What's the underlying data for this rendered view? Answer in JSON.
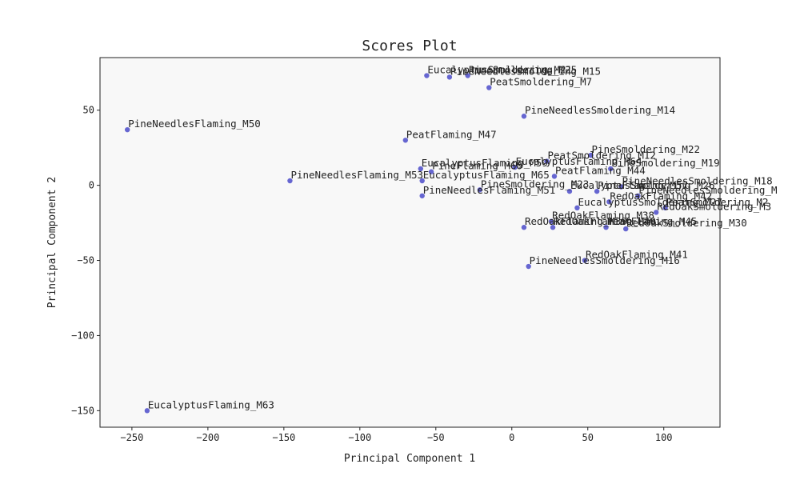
{
  "chart_data": {
    "type": "scatter",
    "title": "Scores Plot",
    "xlabel": "Principal Component 1",
    "ylabel": "Principal Component 2",
    "xlim": [
      -271,
      137
    ],
    "ylim": [
      -161,
      85
    ],
    "xticks": [
      -250,
      -200,
      -150,
      -100,
      -50,
      0,
      50,
      100
    ],
    "yticks": [
      50,
      0,
      -50,
      -100,
      -150
    ],
    "xtick_labels": [
      "−250",
      "−200",
      "−150",
      "−100",
      "−50",
      "0",
      "50",
      "100"
    ],
    "ytick_labels": [
      "50",
      "0",
      "−50",
      "−100",
      "−150"
    ],
    "grid": false,
    "point_color": "#5555cc",
    "points": [
      {
        "label": "EucalyptusSmoldering_M21",
        "x": -56,
        "y": 73
      },
      {
        "label": "PineNeedlesSmoldering_M15",
        "x": -41,
        "y": 72
      },
      {
        "label": "PineSmoldering_M25",
        "x": -29,
        "y": 73
      },
      {
        "label": "PeatSmoldering_M7",
        "x": -15,
        "y": 65
      },
      {
        "label": "PineNeedlesSmoldering_M14",
        "x": 8,
        "y": 46
      },
      {
        "label": "PineNeedlesFlaming_M50",
        "x": -253,
        "y": 37
      },
      {
        "label": "PeatFlaming_M47",
        "x": -70,
        "y": 30
      },
      {
        "label": "PineSmoldering_M22",
        "x": 52,
        "y": 20
      },
      {
        "label": "PeatSmoldering_M12",
        "x": 23,
        "y": 16
      },
      {
        "label": "EucalyptusFlaming_M64",
        "x": 2,
        "y": 12
      },
      {
        "label": "PineSmoldering_M19",
        "x": 65,
        "y": 11
      },
      {
        "label": "EucalyptusFlaming_M59",
        "x": -60,
        "y": 11
      },
      {
        "label": "PineFlaming_M60",
        "x": -53,
        "y": 9
      },
      {
        "label": "PeatFlaming_M44",
        "x": 28,
        "y": 6
      },
      {
        "label": "PineNeedlesFlaming_M53",
        "x": -146,
        "y": 3
      },
      {
        "label": "EucalyptusFlaming_M65",
        "x": -59,
        "y": 3
      },
      {
        "label": "PineNeedlesSmoldering_M18",
        "x": 72,
        "y": -1
      },
      {
        "label": "PineSmoldering_M23",
        "x": -21,
        "y": -3
      },
      {
        "label": "EucalyptusSmoldering_M26",
        "x": 38,
        "y": -4
      },
      {
        "label": "PineFlaming_M57",
        "x": 56,
        "y": -4
      },
      {
        "label": "PineNeedlesSmoldering_M",
        "x": 83,
        "y": -7
      },
      {
        "label": "PineNeedlesFlaming_M51",
        "x": -59,
        "y": -7
      },
      {
        "label": "RedOakFlaming_M42",
        "x": 64,
        "y": -11
      },
      {
        "label": "EucalyptusSmoldering_M27",
        "x": 43,
        "y": -15
      },
      {
        "label": "PeatSmoldering_M2",
        "x": 101,
        "y": -15
      },
      {
        "label": "RedOakSmoldering_M3",
        "x": 95,
        "y": -18
      },
      {
        "label": "RedOakFlaming_M38",
        "x": 26,
        "y": -24
      },
      {
        "label": "RedOakFlaming_M39",
        "x": 8,
        "y": -28
      },
      {
        "label": "RedOakFlaming_M40",
        "x": 27,
        "y": -28
      },
      {
        "label": "PeatFlaming_M45",
        "x": 62,
        "y": -28
      },
      {
        "label": "RedOakSmoldering_M30",
        "x": 75,
        "y": -29
      },
      {
        "label": "RedOakFlaming_M41",
        "x": 48,
        "y": -50
      },
      {
        "label": "PineNeedlesSmoldering_M16",
        "x": 11,
        "y": -54
      },
      {
        "label": "EucalyptusFlaming_M63",
        "x": -240,
        "y": -150
      }
    ]
  }
}
